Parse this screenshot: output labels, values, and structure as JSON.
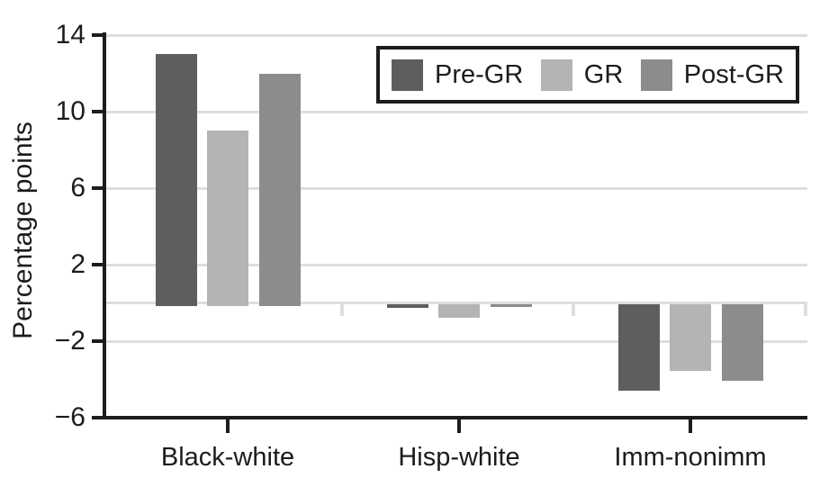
{
  "chart_data": {
    "type": "bar",
    "title": "",
    "xlabel": "",
    "ylabel": "Percentage points",
    "categories": [
      "Black-white",
      "Hisp-white",
      "Imm-nonimm"
    ],
    "series": [
      {
        "name": "Pre-GR",
        "color": "#5e5e5e",
        "values": [
          13.0,
          -0.2,
          -4.5
        ]
      },
      {
        "name": "GR",
        "color": "#b3b4b3",
        "values": [
          9.0,
          -0.7,
          -3.5
        ]
      },
      {
        "name": "Post-GR",
        "color": "#8b8c8b",
        "values": [
          12.0,
          -0.15,
          -4.0
        ]
      }
    ],
    "ylim": [
      -6,
      14
    ],
    "yticks": [
      14,
      10,
      6,
      2,
      -2,
      -6
    ],
    "gridlines_at": [
      14,
      10,
      6,
      2,
      0,
      -2
    ],
    "grid": true,
    "legend_position": "top-right-inside",
    "colors": {
      "axis": "#1c1c1c",
      "gridline": "#dedede",
      "text": "#1c1c1c",
      "background": "#ffffff"
    }
  }
}
